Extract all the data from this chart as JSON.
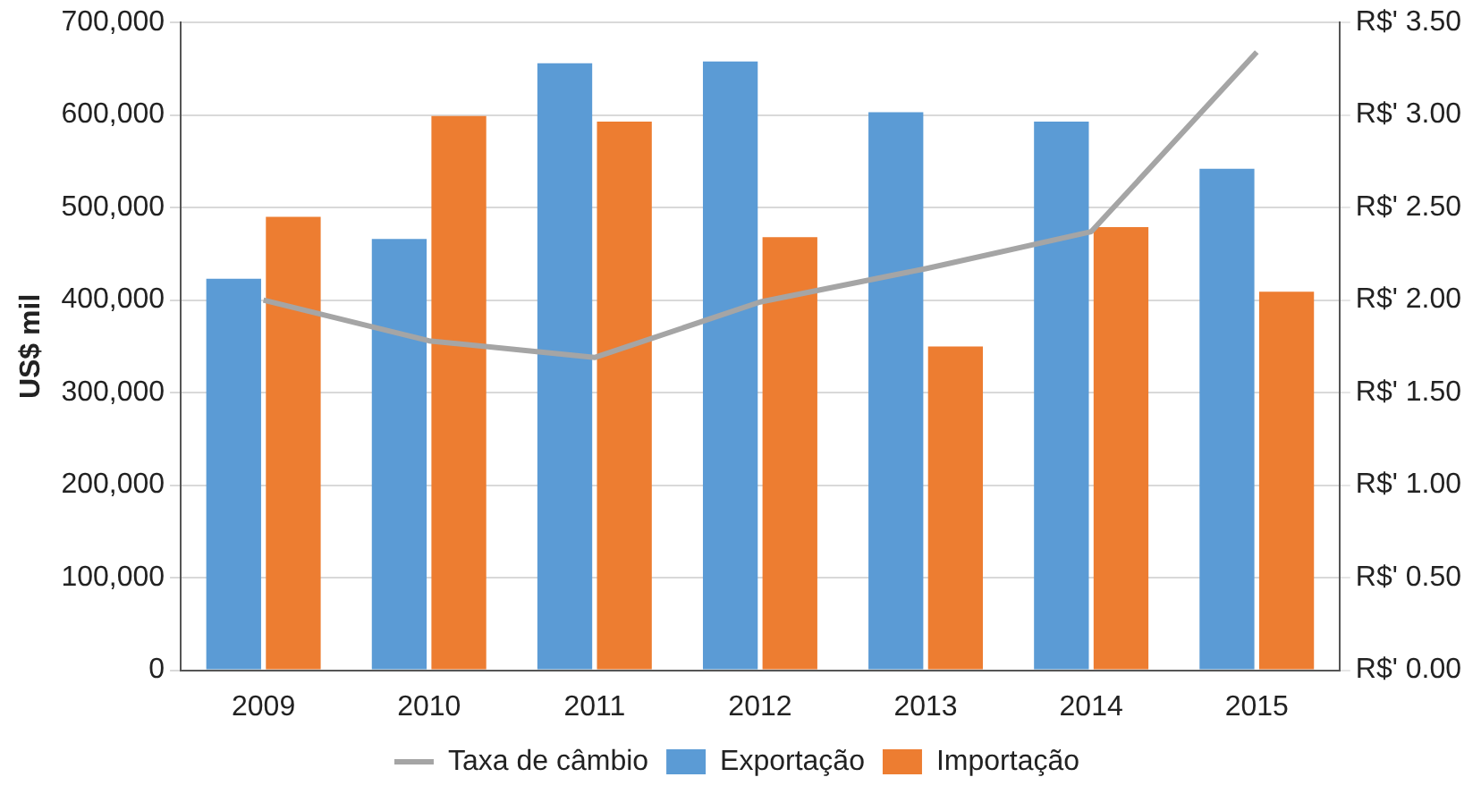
{
  "chart_data": {
    "type": "bar",
    "ylabel": "US$ mil",
    "categories": [
      "2009",
      "2010",
      "2011",
      "2012",
      "2013",
      "2014",
      "2015"
    ],
    "series": [
      {
        "name": "Exportação",
        "color": "#5b9bd5",
        "values": [
          423000,
          466000,
          656000,
          658000,
          603000,
          593000,
          542000
        ]
      },
      {
        "name": "Importação",
        "color": "#ed7d31",
        "values": [
          490000,
          599000,
          593000,
          468000,
          350000,
          479000,
          409000
        ]
      },
      {
        "name": "Taxa de câmbio",
        "type": "line",
        "axis": "y2",
        "color": "#a5a5a5",
        "values": [
          2.0,
          1.78,
          1.69,
          1.99,
          2.17,
          2.37,
          3.34
        ]
      }
    ],
    "ylim": [
      0,
      700000
    ],
    "yticks": [
      0,
      {
        "value": 100000,
        "label": "100,000"
      },
      {
        "value": 200000,
        "label": "200,000"
      },
      {
        "value": 300000,
        "label": "300,000"
      },
      {
        "value": 400000,
        "label": "400,000"
      },
      {
        "value": 500000,
        "label": "500,000"
      },
      {
        "value": 600000,
        "label": "600,000"
      },
      {
        "value": 700000,
        "label": "700,000"
      }
    ],
    "y2lim": [
      0,
      3.5
    ],
    "y2ticks": [
      {
        "value": 0,
        "label": "R$' 0.00"
      },
      {
        "value": 0.5,
        "label": "R$' 0.50"
      },
      {
        "value": 1,
        "label": "R$' 1.00"
      },
      {
        "value": 1.5,
        "label": "R$' 1.50"
      },
      {
        "value": 2,
        "label": "R$' 2.00"
      },
      {
        "value": 2.5,
        "label": "R$' 2.50"
      },
      {
        "value": 3,
        "label": "R$' 3.00"
      },
      {
        "value": 3.5,
        "label": "R$' 3.50"
      }
    ],
    "grid": "y",
    "legend": "bottom",
    "marker": "none"
  }
}
